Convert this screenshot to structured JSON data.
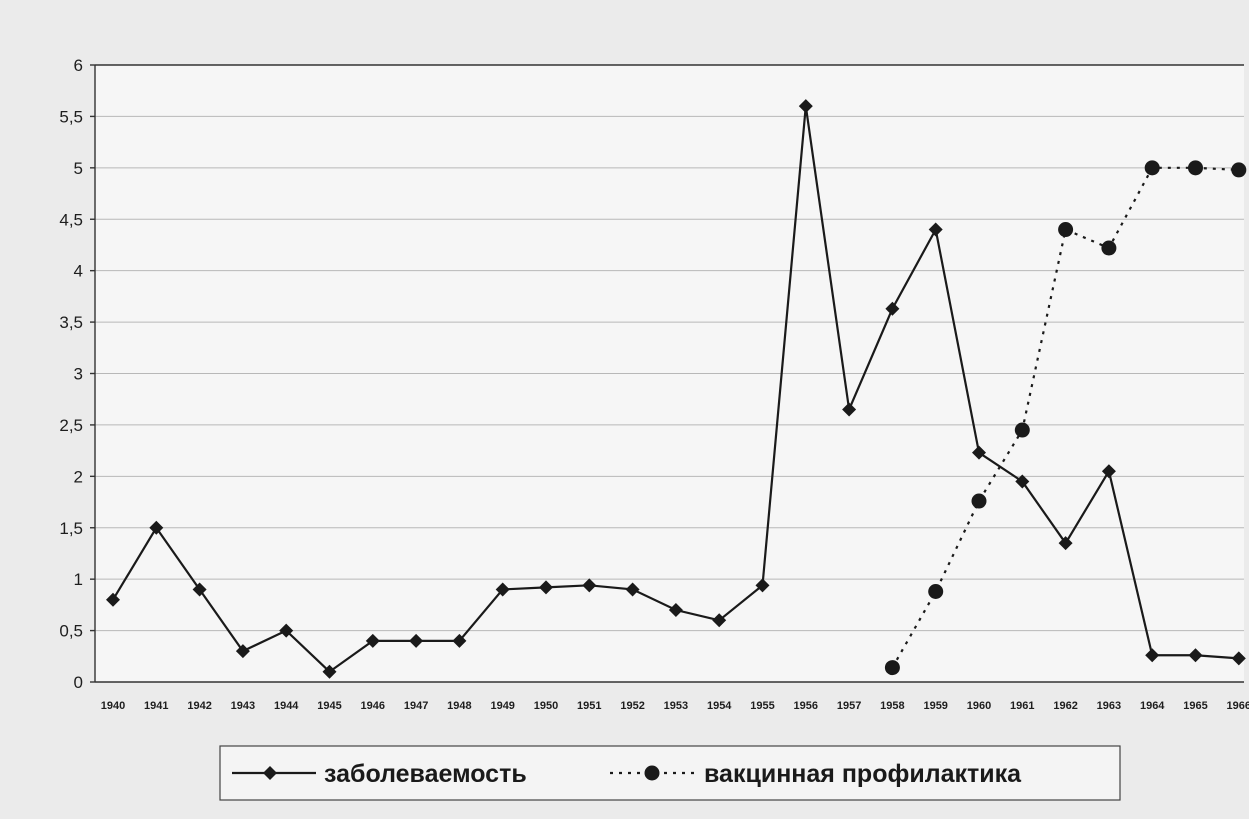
{
  "chart_data": {
    "type": "line",
    "title": "",
    "xlabel": "",
    "ylabel": "",
    "ylim": [
      0,
      6
    ],
    "yticks": [
      "0",
      "0,5",
      "1",
      "1,5",
      "2",
      "2,5",
      "3",
      "3,5",
      "4",
      "4,5",
      "5",
      "5,5",
      "6"
    ],
    "categories": [
      "1940",
      "1941",
      "1942",
      "1943",
      "1944",
      "1945",
      "1946",
      "1947",
      "1948",
      "1949",
      "1950",
      "1951",
      "1952",
      "1953",
      "1954",
      "1955",
      "1956",
      "1957",
      "1958",
      "1959",
      "1960",
      "1961",
      "1962",
      "1963",
      "1964",
      "1965",
      "1966"
    ],
    "grid": true,
    "legend_position": "bottom",
    "series": [
      {
        "name": "заболеваемость",
        "marker": "diamond",
        "line_style": "solid",
        "color": "#1a1a1a",
        "values": [
          0.8,
          1.5,
          0.9,
          0.3,
          0.5,
          0.1,
          0.4,
          0.4,
          0.4,
          0.9,
          0.92,
          0.94,
          0.9,
          0.7,
          0.6,
          0.94,
          5.6,
          2.65,
          3.63,
          4.4,
          2.23,
          1.95,
          1.35,
          2.05,
          0.26,
          0.26,
          0.23
        ]
      },
      {
        "name": "вакцинная профилактика",
        "marker": "circle",
        "line_style": "dotted",
        "color": "#1a1a1a",
        "values": [
          null,
          null,
          null,
          null,
          null,
          null,
          null,
          null,
          null,
          null,
          null,
          null,
          null,
          null,
          null,
          null,
          null,
          null,
          0.14,
          0.88,
          1.76,
          2.45,
          4.4,
          4.22,
          5.0,
          5.0,
          4.98
        ]
      }
    ]
  },
  "colors": {
    "background": "#ebebeb",
    "plot_area": "#f6f6f6",
    "series": "#1a1a1a"
  }
}
